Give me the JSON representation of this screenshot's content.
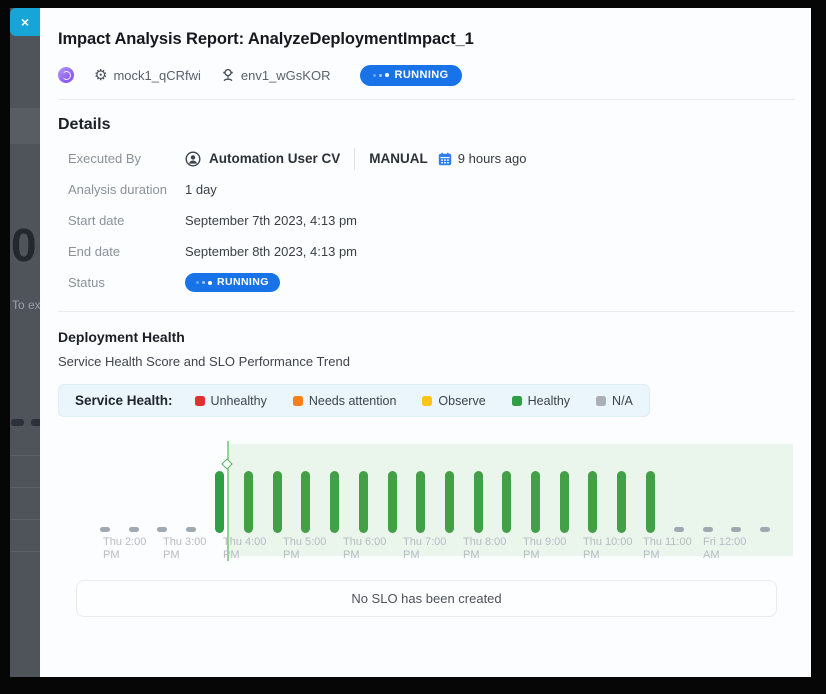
{
  "overlay": {
    "close_label": "×",
    "backdrop": {
      "big_number": "0",
      "partial_text": "To exp"
    }
  },
  "modal": {
    "title": "Impact Analysis Report: AnalyzeDeploymentImpact_1",
    "meta": {
      "mock_label": "mock1_qCRfwi",
      "env_label": "env1_wGsKOR",
      "status_label": "RUNNING"
    },
    "details": {
      "heading": "Details",
      "executed_by": {
        "label": "Executed By",
        "user_name": "Automation User CV",
        "trigger_type": "MANUAL",
        "executed_time": "9 hours ago"
      },
      "rows": [
        {
          "label": "Analysis duration",
          "value": "1 day"
        },
        {
          "label": "Start date",
          "value": "September 7th 2023, 4:13 pm"
        },
        {
          "label": "End date",
          "value": "September 8th 2023, 4:13 pm"
        }
      ],
      "status_row": {
        "label": "Status",
        "value": "RUNNING"
      }
    },
    "empty_state": "No SLO has been created"
  },
  "chart_data": {
    "type": "bar",
    "title": "Deployment Health",
    "subtitle": "Service Health Score and SLO Performance Trend",
    "legend": {
      "label": "Service Health:",
      "position": "top",
      "items": [
        {
          "label": "Unhealthy",
          "color": "#e03131"
        },
        {
          "label": "Needs attention",
          "color": "#fd7e14"
        },
        {
          "label": "Observe",
          "color": "#fcc419"
        },
        {
          "label": "Healthy",
          "color": "#2f9e44"
        },
        {
          "label": "N/A",
          "color": "#a9b0ba"
        }
      ]
    },
    "interval_minutes": 30,
    "status_colors": {
      "Healthy": "#43a047",
      "N/A": "#a0a8b2"
    },
    "points": [
      {
        "time": "Thu 1:30 PM",
        "status": "N/A"
      },
      {
        "time": "Thu 2:00 PM",
        "status": "N/A"
      },
      {
        "time": "Thu 2:30 PM",
        "status": "N/A"
      },
      {
        "time": "Thu 3:00 PM",
        "status": "N/A"
      },
      {
        "time": "Thu 3:30 PM",
        "status": "Healthy",
        "color": "#2f9e44"
      },
      {
        "time": "Thu 4:00 PM",
        "status": "Healthy"
      },
      {
        "time": "Thu 4:30 PM",
        "status": "Healthy"
      },
      {
        "time": "Thu 5:00 PM",
        "status": "Healthy"
      },
      {
        "time": "Thu 5:30 PM",
        "status": "Healthy"
      },
      {
        "time": "Thu 6:00 PM",
        "status": "Healthy"
      },
      {
        "time": "Thu 6:30 PM",
        "status": "Healthy"
      },
      {
        "time": "Thu 7:00 PM",
        "status": "Healthy"
      },
      {
        "time": "Thu 7:30 PM",
        "status": "Healthy"
      },
      {
        "time": "Thu 8:00 PM",
        "status": "Healthy"
      },
      {
        "time": "Thu 8:30 PM",
        "status": "Healthy"
      },
      {
        "time": "Thu 9:00 PM",
        "status": "Healthy"
      },
      {
        "time": "Thu 9:30 PM",
        "status": "Healthy"
      },
      {
        "time": "Thu 10:00 PM",
        "status": "Healthy"
      },
      {
        "time": "Thu 10:30 PM",
        "status": "Healthy"
      },
      {
        "time": "Thu 11:00 PM",
        "status": "Healthy"
      },
      {
        "time": "Thu 11:30 PM",
        "status": "N/A"
      },
      {
        "time": "Fri 12:00 AM",
        "status": "N/A"
      },
      {
        "time": "Fri 12:30 AM",
        "status": "N/A"
      },
      {
        "time": "Fri 1:00 AM",
        "status": "N/A"
      }
    ],
    "x_tick_labels": [
      [
        "Thu 2:00",
        "PM"
      ],
      [
        "Thu 3:00",
        "PM"
      ],
      [
        "Thu 4:00",
        "PM"
      ],
      [
        "Thu 5:00",
        "PM"
      ],
      [
        "Thu 6:00",
        "PM"
      ],
      [
        "Thu 7:00",
        "PM"
      ],
      [
        "Thu 8:00",
        "PM"
      ],
      [
        "Thu 9:00",
        "PM"
      ],
      [
        "Thu 10:00",
        "PM"
      ],
      [
        "Thu 11:00",
        "PM"
      ],
      [
        "Fri 12:00",
        "AM"
      ]
    ],
    "annotations": {
      "analysis_start_marker": "diamond on vertical line at analysis window start; shaded region = analysis window"
    },
    "grid": false
  }
}
